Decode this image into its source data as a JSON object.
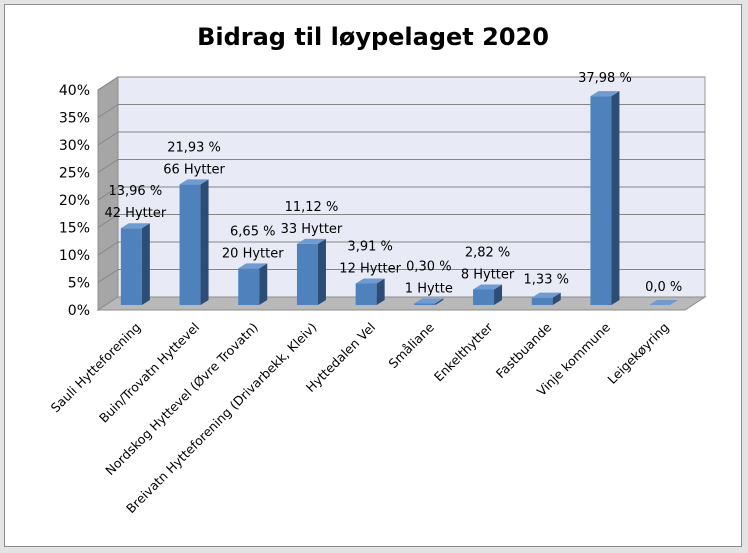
{
  "chart_data": {
    "type": "bar",
    "title": "Bidrag til løypelaget 2020",
    "xlabel": "",
    "ylabel": "",
    "ylim": [
      0,
      40
    ],
    "yticks": [
      "0%",
      "5%",
      "10%",
      "15%",
      "20%",
      "25%",
      "30%",
      "35%",
      "40%"
    ],
    "grid": true,
    "legend": "none",
    "categories": [
      "Sauli Hytteforening",
      "Buin/Trovatn Hyttevel",
      "Nordskog Hyttevel (Øvre Trovatn)",
      "Breivatn Hytteforening (Drivarbekk, Kleiv)",
      "Hyttedalen Vel",
      "Småliane",
      "Enkelthytter",
      "Fastbuande",
      "Vinje kommune",
      "Leigekøyring"
    ],
    "values": [
      13.96,
      21.93,
      6.65,
      11.12,
      3.91,
      0.3,
      2.82,
      1.33,
      37.98,
      0.0
    ],
    "data_labels": [
      "13,96 %",
      "21,93 %",
      "6,65 %",
      "11,12 %",
      "3,91 %",
      "0,30 %",
      "2,82 %",
      "1,33 %",
      "37,98 %",
      "0,0 %"
    ],
    "secondary_labels": [
      "42 Hytter",
      "66 Hytter",
      "20 Hytter",
      "33 Hytter",
      "12 Hytter",
      "1 Hytte",
      "8 Hytter",
      "",
      "",
      ""
    ],
    "colors": {
      "bar_front": "#4f81bd",
      "bar_side": "#2c4d75",
      "bar_top": "#6f9bd1",
      "wall": "#e8ebf6",
      "floor": "#b9b9b9",
      "grid": "#868686"
    }
  }
}
